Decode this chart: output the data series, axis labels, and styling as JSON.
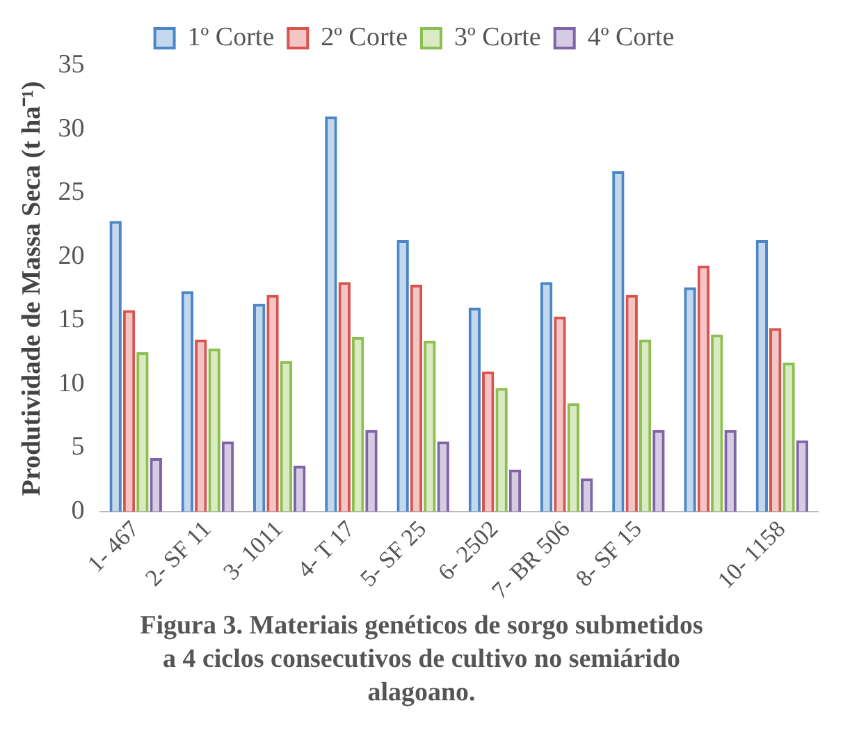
{
  "chart_data": {
    "type": "bar",
    "ylabel": "Produtividade de Massa Seca (t ha⁻¹)",
    "categories": [
      "1- 467",
      "2- SF 11",
      "3- 1011",
      "4- T 17",
      "5- SF 25",
      "6- 2502",
      "7- BR 506",
      "8- SF 15",
      null,
      "10- 1158"
    ],
    "series": [
      {
        "name": "1º Corte",
        "color": "#4a86c8",
        "values": [
          22.8,
          17.3,
          16.3,
          31,
          21.3,
          16,
          18,
          26.7,
          17.6,
          21.3
        ]
      },
      {
        "name": "2º Corte",
        "color": "#d9534f",
        "values": [
          15.8,
          13.5,
          17,
          18,
          17.8,
          11,
          15.3,
          17,
          19.3,
          14.4
        ]
      },
      {
        "name": "3º Corte",
        "color": "#8cbf4f",
        "values": [
          12.5,
          12.8,
          11.8,
          13.7,
          13.4,
          9.7,
          8.5,
          13.5,
          13.9,
          11.7
        ]
      },
      {
        "name": "4º Corte",
        "color": "#8064a8",
        "values": [
          4.2,
          5.5,
          3.6,
          6.4,
          5.5,
          3.3,
          2.6,
          6.4,
          6.4,
          5.6
        ]
      }
    ],
    "ylim": [
      0,
      35
    ],
    "yticks": [
      0,
      5,
      10,
      15,
      20,
      25,
      30,
      35
    ],
    "grid": false,
    "legend": "top",
    "annotations": [
      "Figura 3. Materiais genéticos de sorgo submetidos a 4 ciclos consecutivos de cultivo no semiárido alagoano."
    ]
  }
}
